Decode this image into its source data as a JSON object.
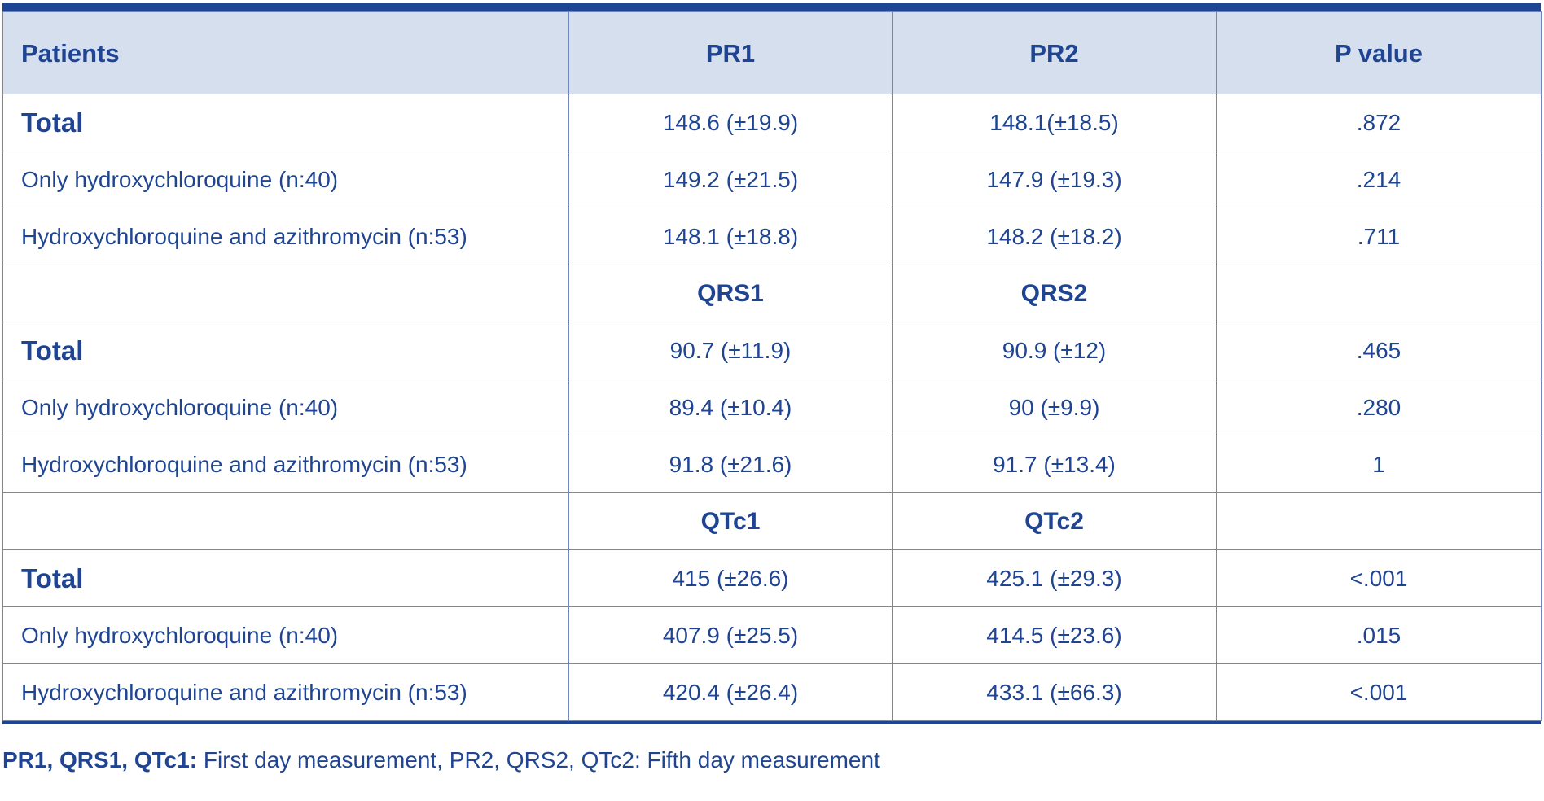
{
  "table": {
    "headers": [
      "Patients",
      "PR1",
      "PR2",
      "P value"
    ],
    "sections": [
      {
        "subheaders": null,
        "rows": [
          {
            "label": "Total",
            "v1": "148.6 (±19.9)",
            "v2": "148.1(±18.5)",
            "p": ".872"
          },
          {
            "label": "Only hydroxychloroquine (n:40)",
            "v1": "149.2 (±21.5)",
            "v2": "147.9 (±19.3)",
            "p": ".214"
          },
          {
            "label": "Hydroxychloroquine and azithromycin (n:53)",
            "v1": "148.1 (±18.8)",
            "v2": "148.2 (±18.2)",
            "p": ".711"
          }
        ]
      },
      {
        "subheaders": [
          "QRS1",
          "QRS2"
        ],
        "rows": [
          {
            "label": "Total",
            "v1": "90.7 (±11.9)",
            "v2": "90.9 (±12)",
            "p": ".465"
          },
          {
            "label": "Only hydroxychloroquine (n:40)",
            "v1": "89.4 (±10.4)",
            "v2": "90 (±9.9)",
            "p": ".280"
          },
          {
            "label": "Hydroxychloroquine and azithromycin (n:53)",
            "v1": "91.8 (±21.6)",
            "v2": "91.7 (±13.4)",
            "p": "1"
          }
        ]
      },
      {
        "subheaders": [
          "QTc1",
          "QTc2"
        ],
        "rows": [
          {
            "label": "Total",
            "v1": "415 (±26.6)",
            "v2": "425.1 (±29.3)",
            "p": "<.001"
          },
          {
            "label": "Only hydroxychloroquine (n:40)",
            "v1": "407.9 (±25.5)",
            "v2": "414.5 (±23.6)",
            "p": ".015"
          },
          {
            "label": "Hydroxychloroquine and azithromycin (n:53)",
            "v1": "420.4 (±26.4)",
            "v2": "433.1 (±66.3)",
            "p": "<.001"
          }
        ]
      }
    ]
  },
  "footnote": {
    "bold": "PR1, QRS1, QTc1:",
    "text": " First day measurement, PR2, QRS2, QTc2: Fifth day measurement"
  },
  "colors": {
    "text": "#1f4592",
    "header_bg": "#d5dfee",
    "rule": "#1e4594",
    "grid": "#6f86be"
  }
}
